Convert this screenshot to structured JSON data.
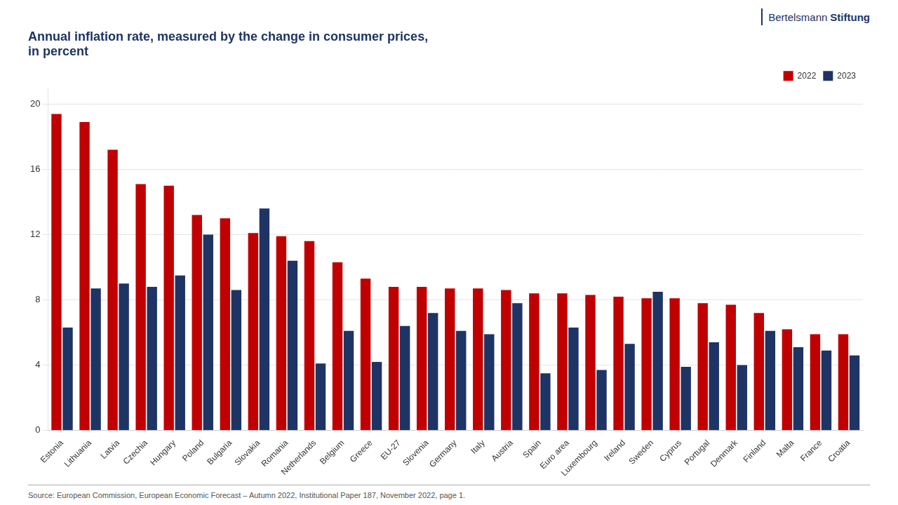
{
  "chart_data": {
    "type": "bar",
    "title": "Annual inflation rate, measured by the change in consumer prices,\nin percent",
    "categories": [
      "Estonia",
      "Lithuania",
      "Latvia",
      "Czechia",
      "Hungary",
      "Poland",
      "Bulgaria",
      "Slovakia",
      "Romania",
      "Netherlands",
      "Belgium",
      "Greece",
      "EU-27",
      "Slovenia",
      "Germany",
      "Italy",
      "Austria",
      "Spain",
      "Euro area",
      "Luxembourg",
      "Ireland",
      "Sweden",
      "Cyprus",
      "Portugal",
      "Denmark",
      "Finland",
      "Malta",
      "France",
      "Croatia"
    ],
    "series": [
      {
        "name": "2022",
        "color": "#c00000",
        "values": [
          19.4,
          18.9,
          17.2,
          15.1,
          15.0,
          13.2,
          13.0,
          12.1,
          11.9,
          11.6,
          10.3,
          9.3,
          8.8,
          8.8,
          8.7,
          8.7,
          8.6,
          8.4,
          8.4,
          8.3,
          8.2,
          8.1,
          8.1,
          7.8,
          7.7,
          7.2,
          6.2,
          5.9,
          5.9
        ]
      },
      {
        "name": "2023",
        "color": "#1e3464",
        "values": [
          6.3,
          8.7,
          9.0,
          8.8,
          9.5,
          12.0,
          8.6,
          13.6,
          10.4,
          4.1,
          6.1,
          4.2,
          6.4,
          7.2,
          6.1,
          5.9,
          7.8,
          3.5,
          6.3,
          3.7,
          5.3,
          8.5,
          3.9,
          5.4,
          4.0,
          6.1,
          5.1,
          4.9,
          4.6
        ]
      }
    ],
    "ylim": [
      0,
      21
    ],
    "yticks": [
      0,
      4,
      8,
      12,
      16,
      20
    ],
    "grid": true,
    "legend": "upper right",
    "source": "Source: European Commission, European Economic Forecast – Autumn 2022, Institutional Paper 187, November 2022, page 1.",
    "annotations": [
      "Bertelsmann",
      "Stiftung"
    ]
  }
}
